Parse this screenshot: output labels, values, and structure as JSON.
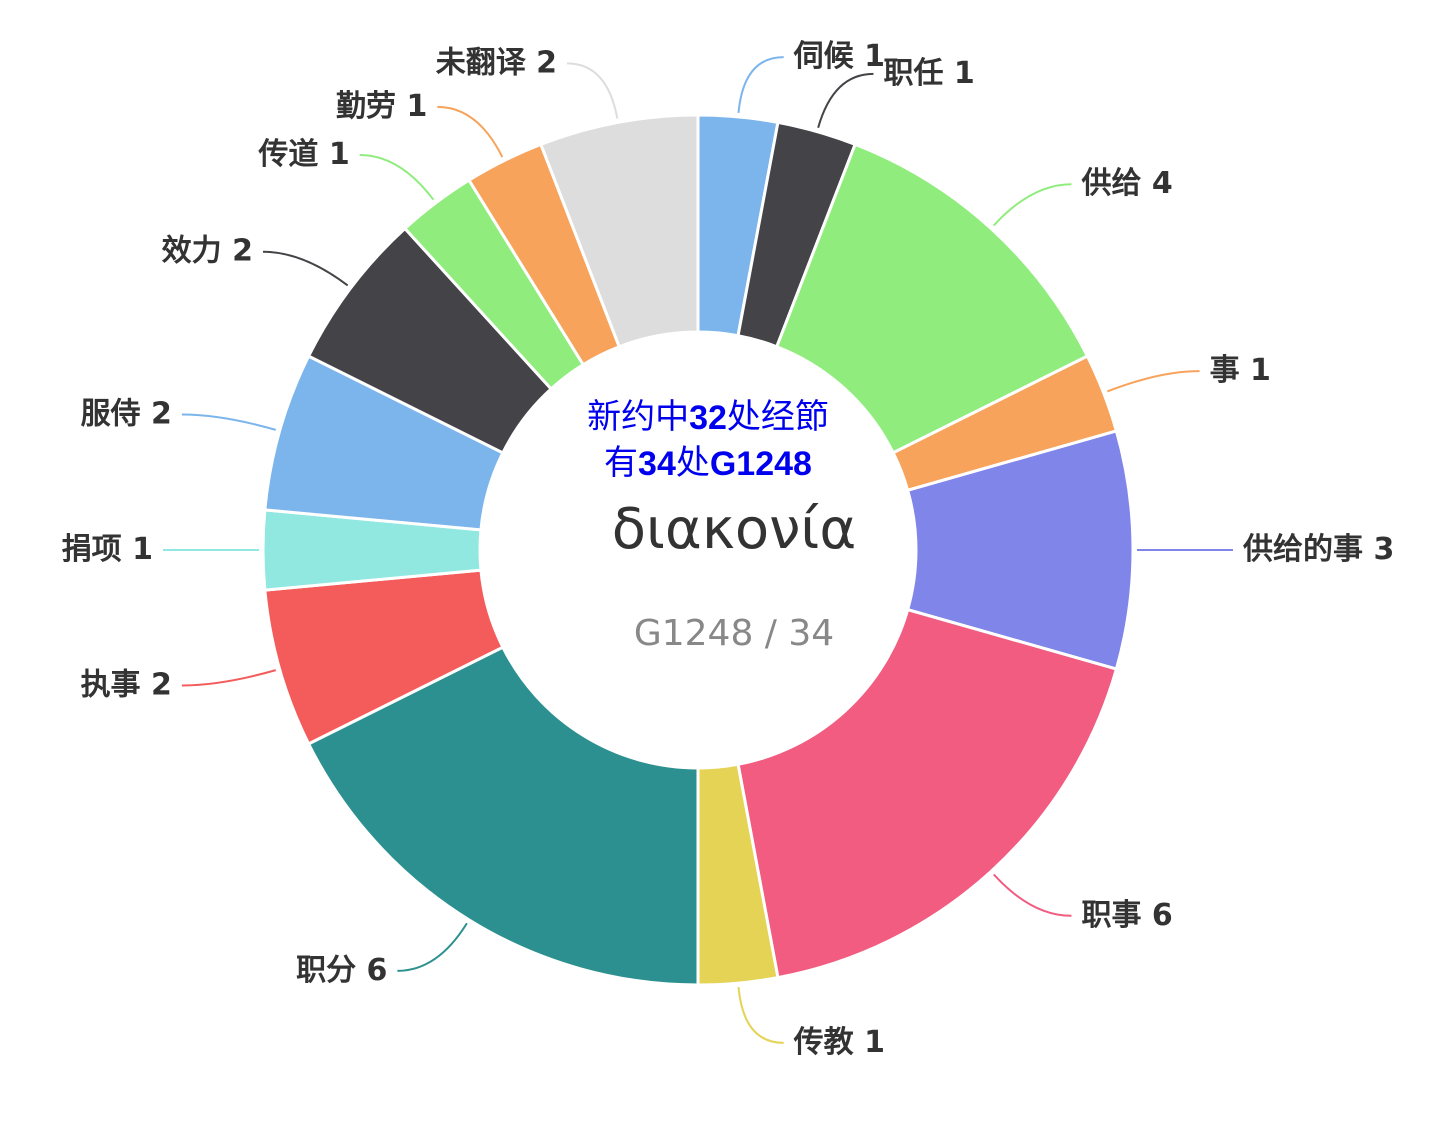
{
  "chart_data": {
    "type": "donut",
    "categories": [
      "伺候",
      "职任",
      "供给",
      "事",
      "供给的事",
      "职事",
      "传教",
      "职分",
      "执事",
      "捐项",
      "服侍",
      "效力",
      "传道",
      "勤劳",
      "未翻译"
    ],
    "values": [
      1,
      1,
      4,
      1,
      3,
      6,
      1,
      6,
      2,
      1,
      2,
      2,
      1,
      1,
      2
    ],
    "colors": [
      "#7cb5ec",
      "#434348",
      "#90ed7d",
      "#f7a35c",
      "#8085e9",
      "#f15c80",
      "#e4d354",
      "#2b908f",
      "#f45b5b",
      "#91e8e1",
      "#7cb5ec",
      "#434348",
      "#90ed7d",
      "#f7a35c",
      "#dddddd"
    ],
    "center_note": [
      [
        "新约中",
        "32",
        "处经節"
      ],
      [
        "有",
        "34",
        "处",
        "G1248"
      ]
    ],
    "center_title": "διακονία",
    "center_subtitle": "G1248 / 34"
  }
}
